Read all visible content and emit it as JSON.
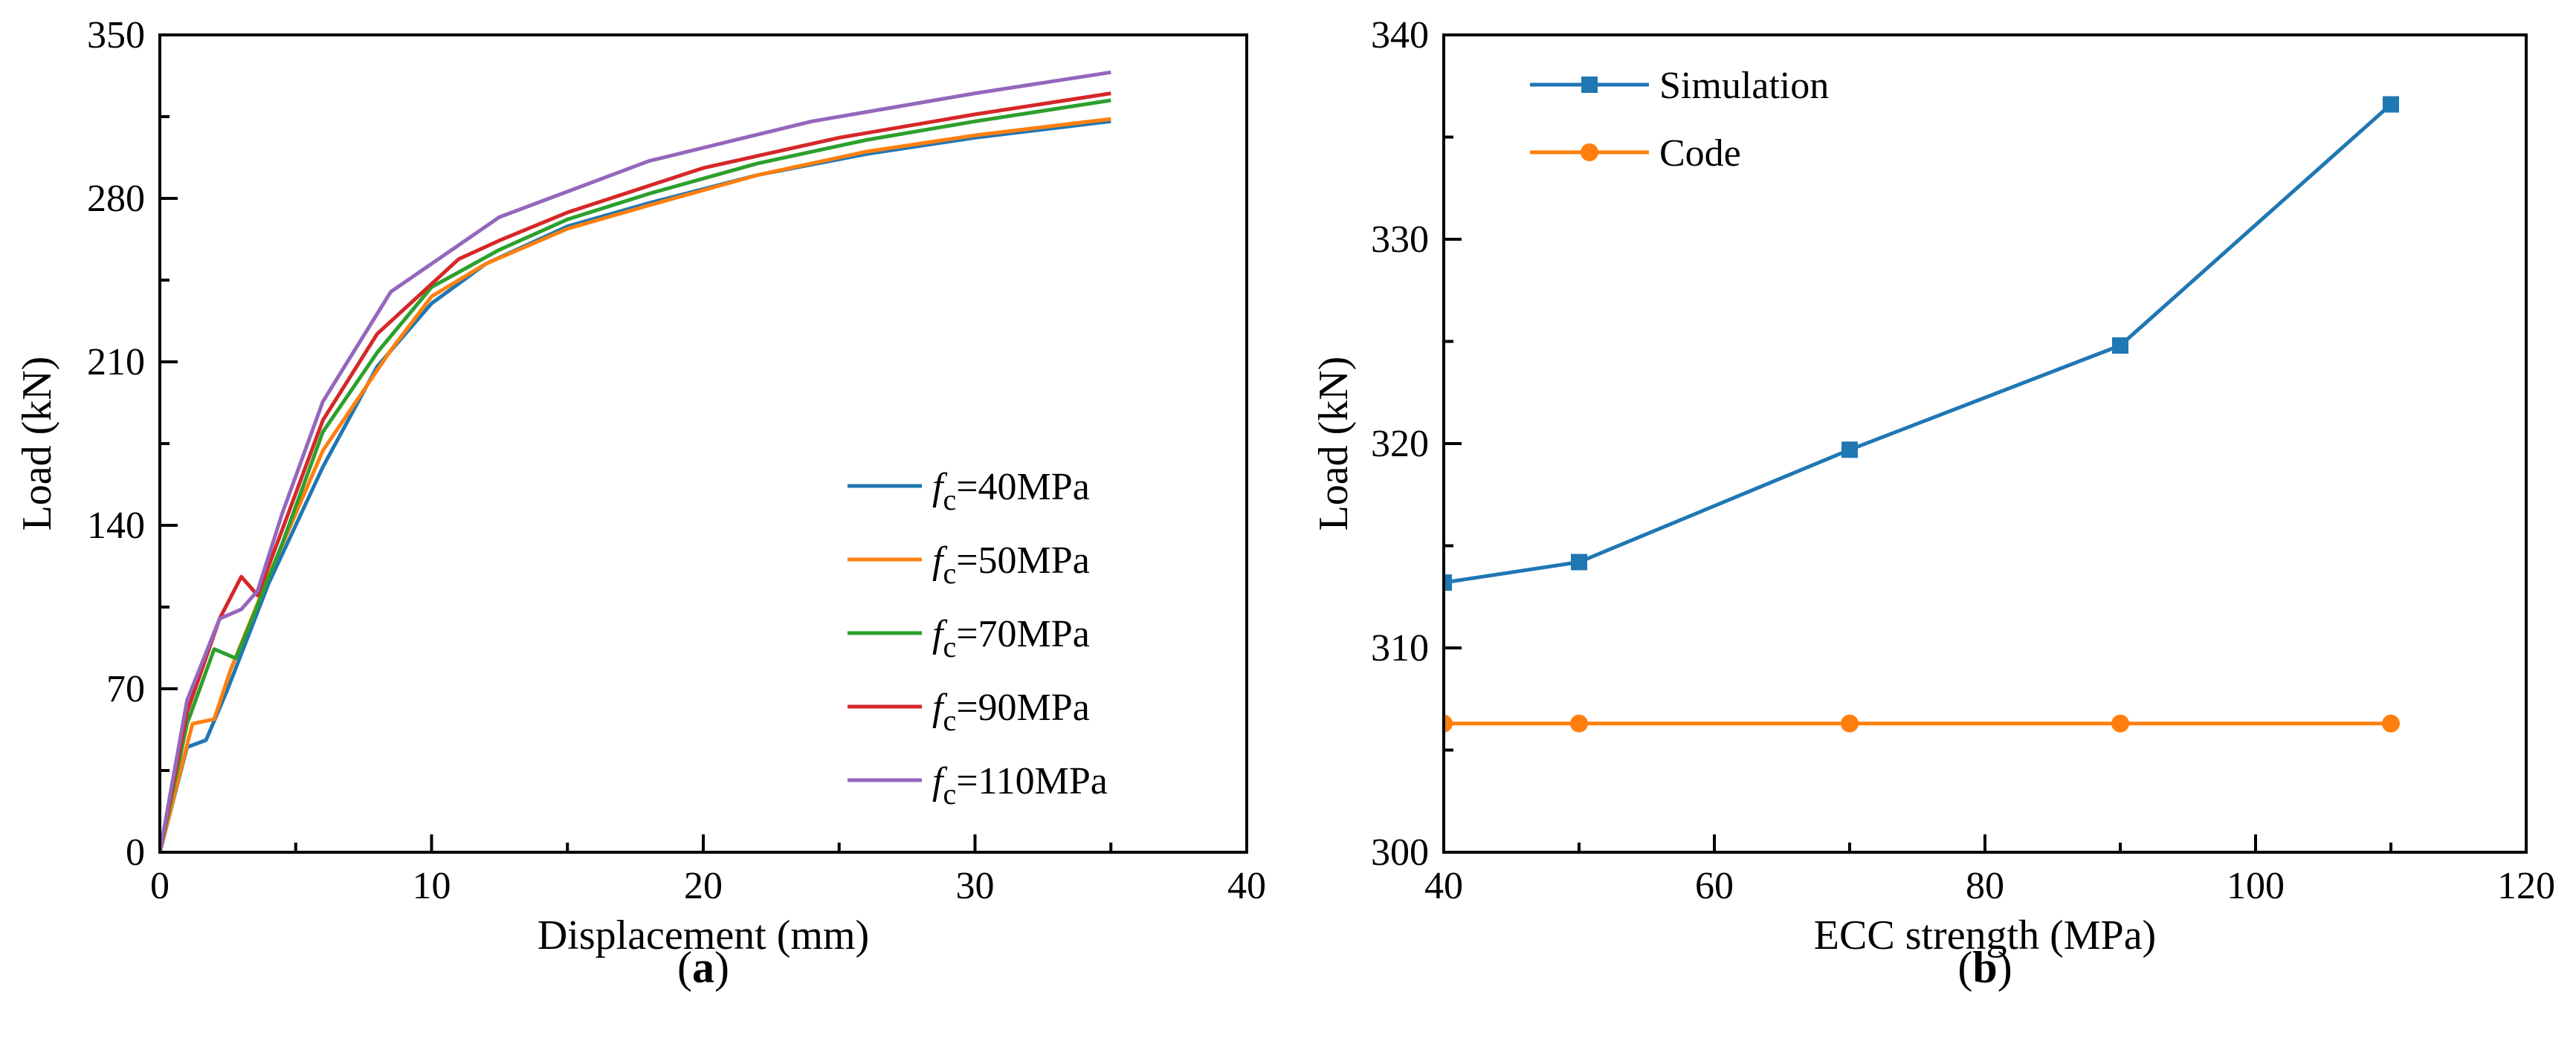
{
  "chart_data": [
    {
      "type": "line",
      "panel_label": "a",
      "xlabel": "Displacement (mm)",
      "ylabel": "Load (kN)",
      "xlim": [
        0,
        40
      ],
      "ylim": [
        0,
        350
      ],
      "xticks": [
        0,
        10,
        20,
        30,
        40
      ],
      "yticks": [
        0,
        70,
        140,
        210,
        280,
        350
      ],
      "grid": false,
      "legend_position": "bottom-right",
      "series": [
        {
          "name": "fc=40MPa",
          "legend_symbol": "f",
          "legend_subscript": "c",
          "legend_rest": "=40MPa",
          "color": "#1f77b4",
          "x": [
            0,
            1,
            1.7,
            2.5,
            4,
            6,
            8,
            10,
            12,
            15,
            18,
            22,
            26,
            30,
            35
          ],
          "y": [
            0,
            45,
            48,
            70,
            115,
            165,
            208,
            235,
            252,
            268,
            278,
            290,
            299,
            306,
            313
          ]
        },
        {
          "name": "fc=50MPa",
          "legend_symbol": "f",
          "legend_subscript": "c",
          "legend_rest": "=50MPa",
          "color": "#ff7f0e",
          "x": [
            0,
            1.2,
            2,
            2.6,
            4,
            6,
            8.5,
            10,
            12,
            15,
            18,
            22,
            26,
            30,
            35
          ],
          "y": [
            0,
            55,
            57,
            78,
            118,
            172,
            215,
            238,
            252,
            267,
            277,
            290,
            300,
            307,
            314
          ]
        },
        {
          "name": "fc=70MPa",
          "legend_symbol": "f",
          "legend_subscript": "c",
          "legend_rest": "=70MPa",
          "color": "#2ca02c",
          "x": [
            0,
            1,
            2,
            2.8,
            3.5,
            4.5,
            6,
            8,
            10,
            12.5,
            15,
            18,
            22,
            26,
            30,
            35
          ],
          "y": [
            0,
            55,
            87,
            83,
            103,
            132,
            180,
            214,
            242,
            258,
            271,
            282,
            295,
            305,
            313,
            322
          ]
        },
        {
          "name": "fc=90MPa",
          "legend_symbol": "f",
          "legend_subscript": "c",
          "legend_rest": "=90MPa",
          "color": "#d62728",
          "x": [
            0,
            1,
            2.2,
            3,
            3.6,
            4.5,
            6,
            8,
            11,
            12.5,
            15,
            20,
            25,
            30,
            35
          ],
          "y": [
            0,
            60,
            100,
            118,
            110,
            138,
            185,
            222,
            254,
            262,
            274,
            293,
            306,
            316,
            325
          ]
        },
        {
          "name": "fc=110MPa",
          "legend_symbol": "f",
          "legend_subscript": "c",
          "legend_rest": "=110MPa",
          "color": "#9467bd",
          "x": [
            0,
            1,
            2.2,
            3,
            3.6,
            4.5,
            6,
            8.5,
            12.5,
            18,
            24,
            30,
            35
          ],
          "y": [
            0,
            65,
            100,
            104,
            112,
            145,
            193,
            240,
            272,
            296,
            313,
            325,
            334
          ]
        }
      ]
    },
    {
      "type": "line",
      "panel_label": "b",
      "xlabel": "ECC strength (MPa)",
      "ylabel": "Load (kN)",
      "xlim": [
        40,
        120
      ],
      "ylim": [
        300,
        340
      ],
      "xticks": [
        40,
        60,
        80,
        100,
        120
      ],
      "yticks": [
        300,
        310,
        320,
        330,
        340
      ],
      "grid": false,
      "legend_position": "top-left",
      "series": [
        {
          "name": "Simulation",
          "color": "#1f77b4",
          "marker": "square",
          "x": [
            40,
            50,
            70,
            90,
            110
          ],
          "y": [
            313.2,
            314.2,
            319.7,
            324.8,
            336.6
          ]
        },
        {
          "name": "Code",
          "color": "#ff7f0e",
          "marker": "circle",
          "x": [
            40,
            50,
            70,
            90,
            110
          ],
          "y": [
            306.3,
            306.3,
            306.3,
            306.3,
            306.3
          ]
        }
      ]
    }
  ]
}
